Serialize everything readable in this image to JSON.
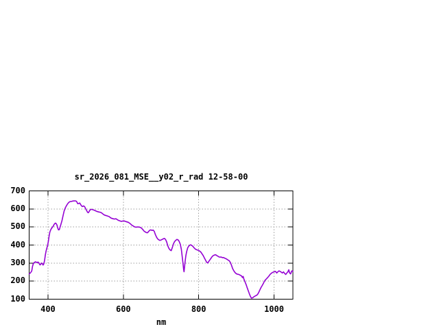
{
  "window": {
    "background": "#ffffff"
  },
  "chart_data": {
    "type": "line",
    "title": "sr_2026_081_MSE__y02_r_rad 12-58-00",
    "xlabel": "nm",
    "ylabel": "",
    "xlim": [
      350,
      1050
    ],
    "ylim": [
      100,
      700
    ],
    "xticks": [
      400,
      600,
      800,
      1000
    ],
    "yticks": [
      100,
      200,
      300,
      400,
      500,
      600,
      700
    ],
    "grid": true,
    "legend": "none",
    "line_color": "#9400d3",
    "grid_color": "#9c9c9c",
    "axis_color": "#000000",
    "series": [
      {
        "x": [
          350,
          352,
          355,
          357,
          359,
          361,
          363,
          365,
          367,
          369,
          371,
          373,
          375,
          377,
          379,
          381,
          383,
          385,
          387,
          389,
          391,
          393,
          395,
          397,
          399,
          401,
          403,
          405,
          407,
          409,
          411,
          414,
          416,
          418,
          420,
          422,
          424,
          426,
          428,
          430,
          432,
          434,
          437,
          440,
          443,
          446,
          449,
          452,
          455,
          458,
          460,
          463,
          466,
          469,
          472,
          475,
          477,
          479,
          482,
          484,
          486,
          488,
          491,
          493,
          495,
          498,
          500,
          503,
          505,
          507,
          509,
          511,
          513,
          515,
          517,
          520,
          523,
          526,
          529,
          532,
          535,
          538,
          541,
          544,
          547,
          550,
          553,
          556,
          559,
          562,
          565,
          568,
          571,
          574,
          577,
          580,
          583,
          586,
          589,
          592,
          595,
          598,
          601,
          604,
          607,
          610,
          613,
          616,
          619,
          622,
          625,
          628,
          631,
          634,
          637,
          640,
          643,
          646,
          649,
          652,
          655,
          658,
          661,
          664,
          667,
          670,
          673,
          676,
          679,
          682,
          685,
          688,
          691,
          694,
          697,
          700,
          703,
          706,
          709,
          712,
          715,
          718,
          721,
          724,
          727,
          730,
          733,
          736,
          739,
          742,
          745,
          748,
          751,
          754,
          756,
          758,
          760,
          761,
          762,
          764,
          766,
          768,
          771,
          774,
          777,
          779,
          782,
          785,
          788,
          791,
          794,
          797,
          800,
          803,
          806,
          809,
          812,
          815,
          818,
          821,
          824,
          827,
          830,
          833,
          836,
          839,
          842,
          845,
          848,
          851,
          854,
          857,
          860,
          863,
          866,
          869,
          872,
          875,
          878,
          881,
          884,
          887,
          890,
          893,
          896,
          899,
          902,
          905,
          908,
          911,
          914,
          916,
          918,
          920,
          923,
          926,
          929,
          932,
          935,
          938,
          940,
          942,
          944,
          947,
          950,
          953,
          956,
          959,
          962,
          965,
          968,
          971,
          974,
          977,
          980,
          983,
          986,
          989,
          992,
          995,
          998,
          1001,
          1004,
          1007,
          1010,
          1013,
          1016,
          1019,
          1022,
          1025,
          1028,
          1031,
          1034,
          1037,
          1039,
          1041,
          1044,
          1047,
          1050
        ],
        "y": [
          240,
          243,
          250,
          257,
          282,
          296,
          302,
          305,
          307,
          305,
          302,
          306,
          304,
          296,
          290,
          294,
          300,
          297,
          289,
          296,
          315,
          345,
          367,
          383,
          398,
          420,
          450,
          472,
          483,
          491,
          497,
          505,
          514,
          519,
          522,
          518,
          510,
          494,
          484,
          485,
          498,
          512,
          534,
          562,
          590,
          606,
          618,
          628,
          636,
          640,
          641,
          642,
          644,
          644,
          645,
          643,
          637,
          629,
          630,
          633,
          627,
          620,
          613,
          615,
          617,
          610,
          601,
          590,
          582,
          579,
          585,
          592,
          596,
          598,
          597,
          595,
          593,
          590,
          587,
          585,
          583,
          582,
          580,
          575,
          570,
          566,
          564,
          562,
          560,
          558,
          553,
          549,
          547,
          545,
          544,
          546,
          542,
          538,
          535,
          533,
          531,
          533,
          534,
          532,
          530,
          528,
          526,
          522,
          517,
          511,
          507,
          503,
          500,
          499,
          500,
          500,
          499,
          497,
          492,
          485,
          477,
          473,
          469,
          468,
          475,
          482,
          484,
          481,
          483,
          476,
          458,
          444,
          434,
          429,
          426,
          428,
          431,
          434,
          437,
          431,
          417,
          396,
          381,
          373,
          369,
          386,
          407,
          419,
          426,
          431,
          429,
          421,
          405,
          376,
          340,
          305,
          265,
          252,
          270,
          310,
          342,
          363,
          385,
          395,
          400,
          401,
          397,
          392,
          384,
          378,
          374,
          372,
          370,
          366,
          360,
          351,
          341,
          329,
          317,
          305,
          300,
          310,
          319,
          328,
          337,
          342,
          345,
          346,
          342,
          338,
          334,
          333,
          333,
          330,
          331,
          327,
          325,
          321,
          317,
          313,
          304,
          288,
          270,
          258,
          249,
          242,
          239,
          238,
          235,
          232,
          228,
          220,
          226,
          211,
          196,
          180,
          162,
          144,
          127,
          112,
          106,
          107,
          109,
          114,
          118,
          121,
          126,
          136,
          150,
          163,
          174,
          185,
          198,
          207,
          213,
          220,
          227,
          236,
          242,
          247,
          250,
          252,
          254,
          245,
          251,
          257,
          254,
          250,
          245,
          251,
          243,
          237,
          245,
          253,
          263,
          246,
          240,
          257,
          254
        ]
      }
    ]
  }
}
